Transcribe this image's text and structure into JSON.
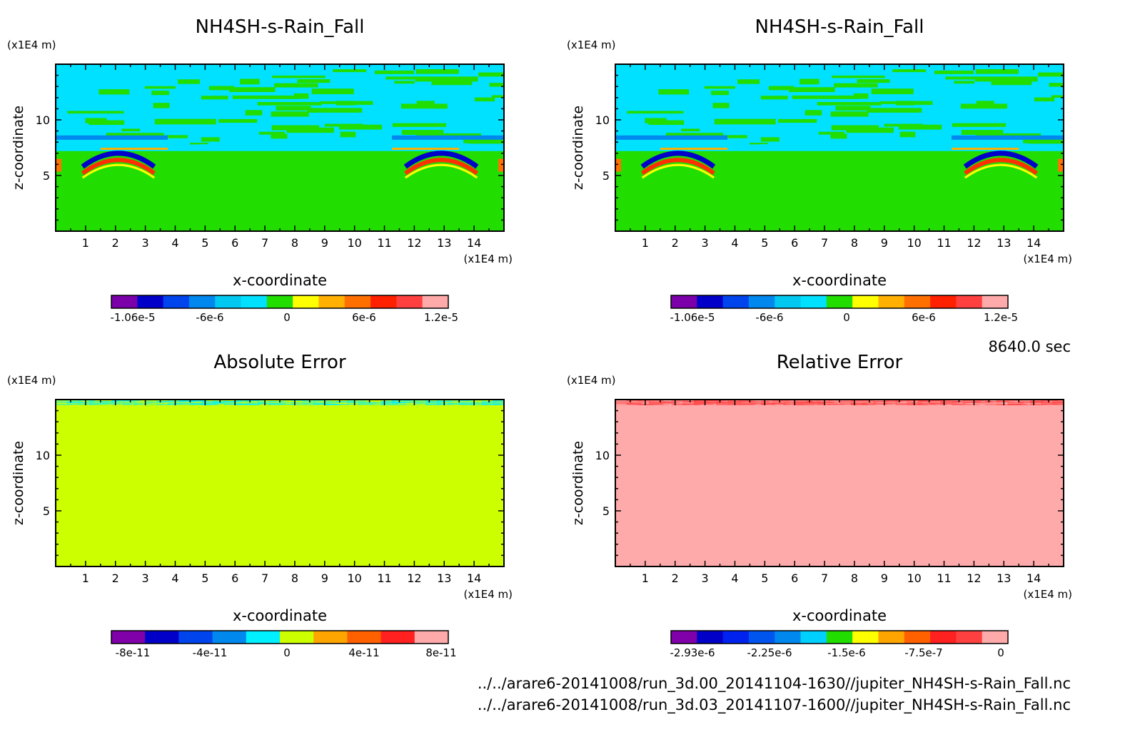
{
  "time_label": "8640.0 sec",
  "files": [
    "../../arare6-20141008/run_3d.00_20141104-1630//jupiter_NH4SH-s-Rain_Fall.nc",
    "../../arare6-20141008/run_3d.03_20141107-1600//jupiter_NH4SH-s-Rain_Fall.nc"
  ],
  "chart_data": [
    {
      "type": "heatmap",
      "title": "NH4SH-s-Rain_Fall",
      "xlabel": "x-coordinate",
      "ylabel": "z-coordinate",
      "x_unit": "(x1E4 m)",
      "y_unit": "(x1E4 m)",
      "xlim": [
        0,
        15
      ],
      "ylim": [
        0,
        15
      ],
      "x_ticks": [
        1,
        2,
        3,
        4,
        5,
        6,
        7,
        8,
        9,
        10,
        11,
        12,
        13,
        14
      ],
      "y_ticks": [
        5,
        10
      ],
      "colorbar": {
        "colors": [
          "#7b00aa",
          "#0000c8",
          "#0044ee",
          "#0088ee",
          "#00c8f0",
          "#00e0ff",
          "#22dd00",
          "#ffff00",
          "#ffb000",
          "#ff7000",
          "#ff2000",
          "#ff4040",
          "#ffaaaa"
        ],
        "labels": [
          "-1.06e-5",
          "-6e-6",
          "0",
          "6e-6",
          "1.2e-5"
        ]
      },
      "pattern": "field"
    },
    {
      "type": "heatmap",
      "title": "NH4SH-s-Rain_Fall",
      "xlabel": "x-coordinate",
      "ylabel": "z-coordinate",
      "x_unit": "(x1E4 m)",
      "y_unit": "(x1E4 m)",
      "xlim": [
        0,
        15
      ],
      "ylim": [
        0,
        15
      ],
      "x_ticks": [
        1,
        2,
        3,
        4,
        5,
        6,
        7,
        8,
        9,
        10,
        11,
        12,
        13,
        14
      ],
      "y_ticks": [
        5,
        10
      ],
      "colorbar": {
        "colors": [
          "#7b00aa",
          "#0000c8",
          "#0044ee",
          "#0088ee",
          "#00c8f0",
          "#00e0ff",
          "#22dd00",
          "#ffff00",
          "#ffb000",
          "#ff7000",
          "#ff2000",
          "#ff4040",
          "#ffaaaa"
        ],
        "labels": [
          "-1.06e-5",
          "-6e-6",
          "0",
          "6e-6",
          "1.2e-5"
        ]
      },
      "pattern": "field"
    },
    {
      "type": "heatmap",
      "title": "Absolute Error",
      "xlabel": "x-coordinate",
      "ylabel": "z-coordinate",
      "x_unit": "(x1E4 m)",
      "y_unit": "(x1E4 m)",
      "xlim": [
        0,
        15
      ],
      "ylim": [
        0,
        15
      ],
      "x_ticks": [
        1,
        2,
        3,
        4,
        5,
        6,
        7,
        8,
        9,
        10,
        11,
        12,
        13,
        14
      ],
      "y_ticks": [
        5,
        10
      ],
      "colorbar": {
        "colors": [
          "#8000aa",
          "#0000c8",
          "#0044ee",
          "#0088ee",
          "#00f0ff",
          "#ccff00",
          "#ffa500",
          "#ff6000",
          "#ff2020",
          "#ffaaaa"
        ],
        "labels": [
          "-8e-11",
          "-4e-11",
          "0",
          "4e-11",
          "8e-11"
        ]
      },
      "pattern": "abs"
    },
    {
      "type": "heatmap",
      "title": "Relative Error",
      "xlabel": "x-coordinate",
      "ylabel": "z-coordinate",
      "x_unit": "(x1E4 m)",
      "y_unit": "(x1E4 m)",
      "xlim": [
        0,
        15
      ],
      "ylim": [
        0,
        15
      ],
      "x_ticks": [
        1,
        2,
        3,
        4,
        5,
        6,
        7,
        8,
        9,
        10,
        11,
        12,
        13,
        14
      ],
      "y_ticks": [
        5,
        10
      ],
      "colorbar": {
        "colors": [
          "#8000aa",
          "#0000c8",
          "#0022ee",
          "#0055ee",
          "#0088ee",
          "#00d0ff",
          "#22dd00",
          "#ffff00",
          "#ffa500",
          "#ff6000",
          "#ff2020",
          "#ff4040",
          "#ffaaaa"
        ],
        "labels": [
          "-2.93e-6",
          "-2.25e-6",
          "-1.5e-6",
          "-7.5e-7",
          "0"
        ]
      },
      "pattern": "rel"
    }
  ]
}
